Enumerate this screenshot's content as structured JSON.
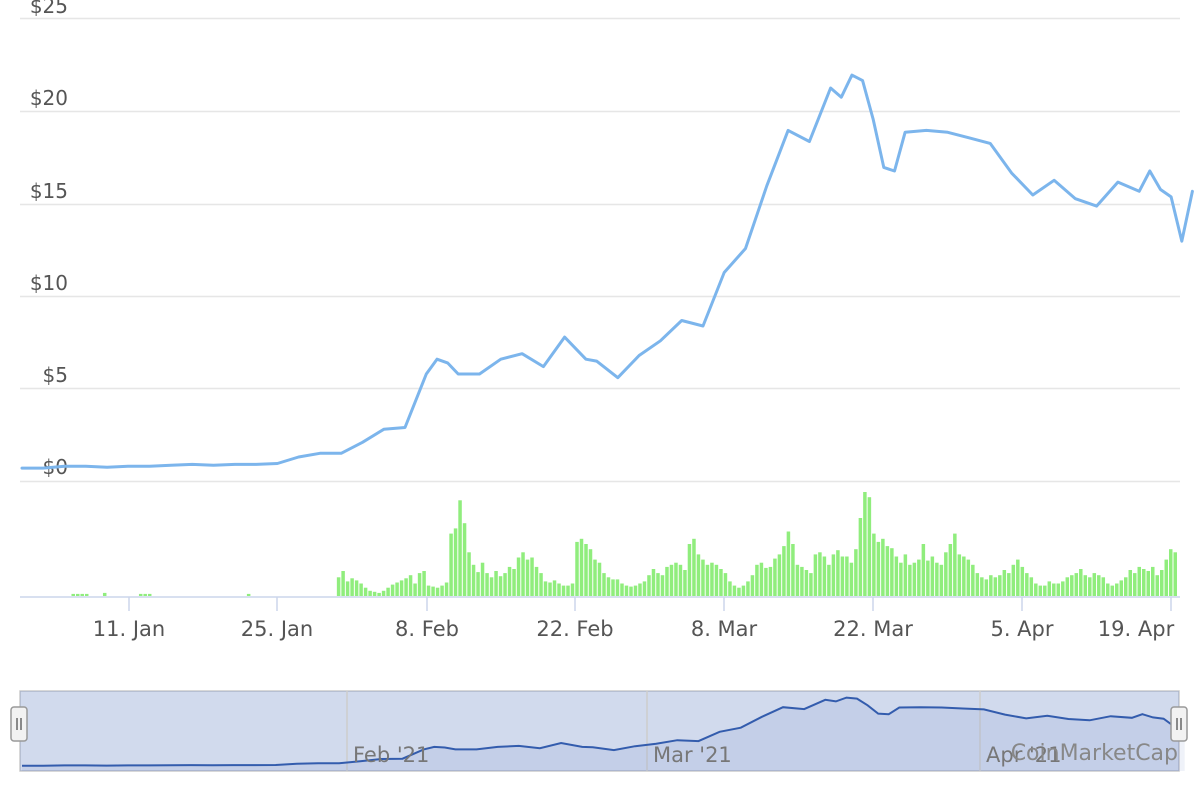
{
  "chart_data": {
    "type": "line",
    "x_axis": {
      "tick_labels": [
        "11. Jan",
        "25. Jan",
        "8. Feb",
        "22. Feb",
        "8. Mar",
        "22. Mar",
        "5. Apr",
        "19. Apr"
      ]
    },
    "price_axis": {
      "tick_labels": [
        "$0",
        "$5",
        "$10",
        "$15",
        "$20",
        "$25"
      ],
      "ylim": [
        0,
        25
      ]
    },
    "grid": true,
    "price_series": {
      "color": "#7cb5ec",
      "x": [
        "Jan 1",
        "Jan 3",
        "Jan 5",
        "Jan 7",
        "Jan 9",
        "Jan 11",
        "Jan 13",
        "Jan 15",
        "Jan 17",
        "Jan 19",
        "Jan 21",
        "Jan 23",
        "Jan 25",
        "Jan 27",
        "Jan 29",
        "Jan 31",
        "Feb 2",
        "Feb 4",
        "Feb 6",
        "Feb 8",
        "Feb 9",
        "Feb 10",
        "Feb 11",
        "Feb 13",
        "Feb 15",
        "Feb 17",
        "Feb 19",
        "Feb 21",
        "Feb 23",
        "Feb 24",
        "Feb 26",
        "Feb 28",
        "Mar 2",
        "Mar 4",
        "Mar 6",
        "Mar 8",
        "Mar 10",
        "Mar 12",
        "Mar 14",
        "Mar 16",
        "Mar 18",
        "Mar 19",
        "Mar 20",
        "Mar 21",
        "Mar 22",
        "Mar 23",
        "Mar 24",
        "Mar 25",
        "Mar 27",
        "Mar 29",
        "Mar 31",
        "Apr 2",
        "Apr 4",
        "Apr 6",
        "Apr 8",
        "Apr 10",
        "Apr 12",
        "Apr 14",
        "Apr 16",
        "Apr 17",
        "Apr 18",
        "Apr 19",
        "Apr 20",
        "Apr 21"
      ],
      "values": [
        0.7,
        0.7,
        0.8,
        0.8,
        0.75,
        0.8,
        0.8,
        0.85,
        0.9,
        0.85,
        0.9,
        0.9,
        0.95,
        1.3,
        1.5,
        1.5,
        2.1,
        2.8,
        2.9,
        5.8,
        6.6,
        6.4,
        5.8,
        5.8,
        6.6,
        6.9,
        6.2,
        7.8,
        6.6,
        6.5,
        5.6,
        6.8,
        7.6,
        8.7,
        8.4,
        11.3,
        12.6,
        16.0,
        19.0,
        18.4,
        21.3,
        20.8,
        22.0,
        21.7,
        19.6,
        17.0,
        16.8,
        18.9,
        19.0,
        18.9,
        18.6,
        18.3,
        16.7,
        15.5,
        16.3,
        15.3,
        14.9,
        16.2,
        15.7,
        16.8,
        15.8,
        15.4,
        13.0,
        15.7
      ]
    },
    "volume_series": {
      "color": "#90ed7d",
      "values": [
        0,
        0,
        0,
        0,
        0,
        0,
        0,
        0,
        0,
        0,
        0,
        0.02,
        0.02,
        0.02,
        0.02,
        0,
        0,
        0,
        0.03,
        0,
        0,
        0,
        0,
        0,
        0,
        0,
        0.02,
        0.02,
        0.02,
        0,
        0,
        0,
        0,
        0,
        0,
        0,
        0,
        0,
        0,
        0,
        0,
        0,
        0,
        0,
        0,
        0,
        0,
        0,
        0,
        0,
        0.02,
        0,
        0,
        0,
        0,
        0,
        0,
        0,
        0,
        0,
        0,
        0,
        0,
        0,
        0,
        0,
        0,
        0,
        0,
        0,
        0.18,
        0.24,
        0.14,
        0.17,
        0.15,
        0.12,
        0.08,
        0.05,
        0.04,
        0.03,
        0.05,
        0.08,
        0.11,
        0.13,
        0.15,
        0.17,
        0.2,
        0.12,
        0.22,
        0.24,
        0.1,
        0.09,
        0.08,
        0.1,
        0.13,
        0.6,
        0.65,
        0.92,
        0.7,
        0.42,
        0.3,
        0.23,
        0.32,
        0.22,
        0.18,
        0.24,
        0.19,
        0.22,
        0.28,
        0.26,
        0.37,
        0.42,
        0.35,
        0.37,
        0.28,
        0.22,
        0.14,
        0.13,
        0.15,
        0.12,
        0.1,
        0.1,
        0.12,
        0.52,
        0.55,
        0.5,
        0.45,
        0.35,
        0.32,
        0.22,
        0.18,
        0.16,
        0.16,
        0.12,
        0.1,
        0.09,
        0.1,
        0.12,
        0.14,
        0.2,
        0.26,
        0.22,
        0.2,
        0.28,
        0.3,
        0.32,
        0.3,
        0.25,
        0.5,
        0.55,
        0.4,
        0.35,
        0.3,
        0.32,
        0.3,
        0.26,
        0.22,
        0.14,
        0.1,
        0.08,
        0.1,
        0.14,
        0.2,
        0.3,
        0.32,
        0.27,
        0.28,
        0.36,
        0.4,
        0.48,
        0.62,
        0.5,
        0.3,
        0.28,
        0.25,
        0.22,
        0.4,
        0.42,
        0.38,
        0.3,
        0.4,
        0.44,
        0.38,
        0.38,
        0.32,
        0.45,
        0.75,
        1.0,
        0.95,
        0.6,
        0.52,
        0.55,
        0.48,
        0.46,
        0.38,
        0.32,
        0.4,
        0.3,
        0.32,
        0.35,
        0.5,
        0.34,
        0.38,
        0.32,
        0.3,
        0.42,
        0.5,
        0.6,
        0.4,
        0.38,
        0.35,
        0.3,
        0.22,
        0.18,
        0.16,
        0.2,
        0.18,
        0.2,
        0.25,
        0.22,
        0.3,
        0.35,
        0.28,
        0.22,
        0.18,
        0.12,
        0.1,
        0.1,
        0.14,
        0.12,
        0.12,
        0.14,
        0.18,
        0.2,
        0.22,
        0.26,
        0.2,
        0.18,
        0.22,
        0.2,
        0.18,
        0.12,
        0.1,
        0.12,
        0.15,
        0.18,
        0.25,
        0.22,
        0.28,
        0.26,
        0.24,
        0.28,
        0.2,
        0.25,
        0.35,
        0.45,
        0.42
      ]
    },
    "navigator": {
      "tick_labels": [
        "Feb '21",
        "Mar '21",
        "Apr '21"
      ],
      "series_color": "#335cad"
    },
    "credits": "CoinMarketCap"
  }
}
